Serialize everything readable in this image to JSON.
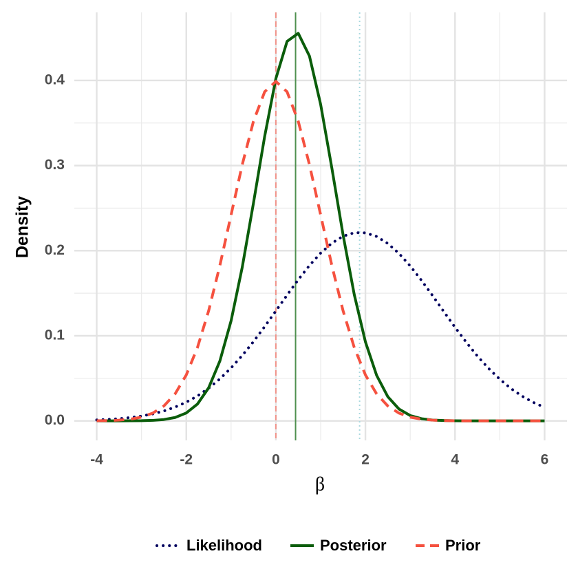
{
  "chart_data": {
    "type": "line",
    "x_label": "β",
    "y_label": "Density",
    "x": [
      -4,
      -3.75,
      -3.5,
      -3.25,
      -3,
      -2.75,
      -2.5,
      -2.25,
      -2,
      -1.75,
      -1.5,
      -1.25,
      -1,
      -0.75,
      -0.5,
      -0.25,
      0,
      0.25,
      0.5,
      0.75,
      1,
      1.25,
      1.5,
      1.75,
      2,
      2.25,
      2.5,
      2.75,
      3,
      3.25,
      3.5,
      3.75,
      4,
      4.25,
      4.5,
      4.75,
      5,
      5.25,
      5.5,
      5.75,
      6
    ],
    "series": [
      {
        "name": "Likelihood",
        "color": "#00005e",
        "style": "dotted",
        "values": [
          0.0011,
          0.0017,
          0.0026,
          0.0039,
          0.0057,
          0.0082,
          0.0116,
          0.0162,
          0.022,
          0.0293,
          0.0384,
          0.0493,
          0.0622,
          0.0769,
          0.0931,
          0.1108,
          0.1292,
          0.1478,
          0.1659,
          0.1826,
          0.1972,
          0.2088,
          0.217,
          0.2211,
          0.221,
          0.2167,
          0.2084,
          0.1967,
          0.182,
          0.1652,
          0.1471,
          0.1284,
          0.11,
          0.0925,
          0.0762,
          0.0616,
          0.0489,
          0.038,
          0.029,
          0.0217,
          0.0159
        ]
      },
      {
        "name": "Posterior",
        "color": "#0b5d0b",
        "style": "solid",
        "values": [
          0,
          0,
          0,
          0.0001,
          0.0002,
          0.0006,
          0.0016,
          0.004,
          0.0093,
          0.0198,
          0.0389,
          0.0704,
          0.1175,
          0.1807,
          0.256,
          0.3343,
          0.4022,
          0.4459,
          0.4554,
          0.4287,
          0.3718,
          0.2971,
          0.2188,
          0.1485,
          0.0928,
          0.0535,
          0.0284,
          0.0139,
          0.0063,
          0.0026,
          0.001,
          0.0004,
          0.0001,
          0,
          0,
          0,
          0,
          0,
          0,
          0,
          0
        ]
      },
      {
        "name": "Prior",
        "color": "#f5513f",
        "style": "dashed",
        "values": [
          0.0001,
          0.0004,
          0.0009,
          0.002,
          0.0044,
          0.0091,
          0.0175,
          0.0317,
          0.054,
          0.0863,
          0.1295,
          0.1826,
          0.242,
          0.3011,
          0.3521,
          0.3867,
          0.3989,
          0.3867,
          0.3521,
          0.3011,
          0.242,
          0.1826,
          0.1295,
          0.0863,
          0.054,
          0.0317,
          0.0175,
          0.0091,
          0.0044,
          0.002,
          0.0009,
          0.0004,
          0.0001,
          0,
          0,
          0,
          0,
          0,
          0,
          0,
          0
        ]
      }
    ],
    "reference_lines": [
      {
        "value": 1.87,
        "color": "#a9d9df",
        "style": "dotted"
      },
      {
        "value": 0.44,
        "color": "#4e8f4e",
        "style": "solid"
      },
      {
        "value": 0,
        "color": "#f1938a",
        "style": "dashed"
      }
    ],
    "xlim": [
      -4.5,
      6.5
    ],
    "xticks": [
      -4,
      -2,
      0,
      2,
      4,
      6
    ],
    "ylim": [
      -0.0229,
      0.48
    ],
    "yticks": [
      {
        "value": 0,
        "label": "0.0"
      },
      0.1,
      0.2,
      0.3,
      0.4
    ],
    "grid": true,
    "legend_position": "bottom"
  }
}
